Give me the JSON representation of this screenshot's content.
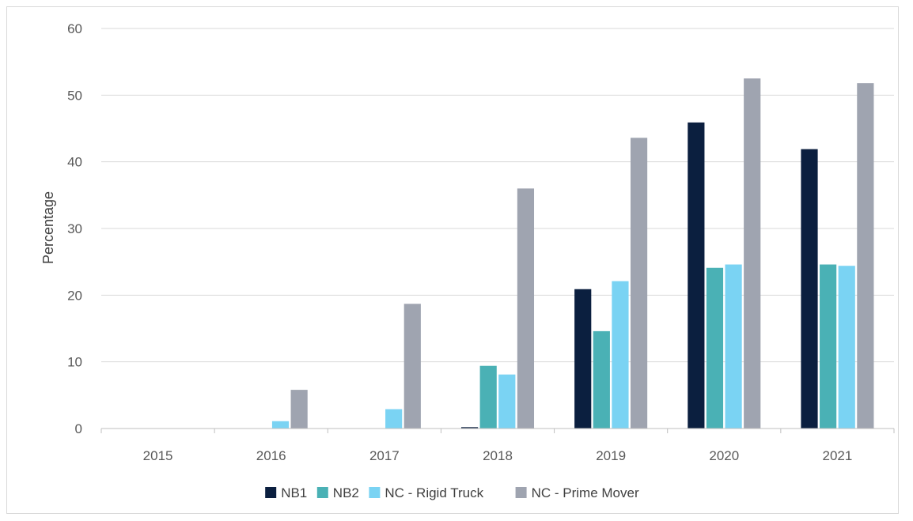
{
  "chart_data": {
    "type": "bar",
    "title": "",
    "xlabel": "",
    "ylabel": "Percentage",
    "ylim": [
      0,
      60
    ],
    "yticks": [
      0,
      10,
      20,
      30,
      40,
      50,
      60
    ],
    "grid": true,
    "legend_position": "bottom",
    "categories": [
      "2015",
      "2016",
      "2017",
      "2018",
      "2019",
      "2020",
      "2021"
    ],
    "series": [
      {
        "name": "NB1",
        "color": "#0b1f3f",
        "values": [
          0,
          0,
          0,
          0.2,
          20.9,
          45.9,
          41.9
        ]
      },
      {
        "name": "NB2",
        "color": "#4ab1b5",
        "values": [
          0,
          0,
          0,
          9.4,
          14.6,
          24.1,
          24.6
        ]
      },
      {
        "name": "NC - Rigid Truck",
        "color": "#7ad3f3",
        "values": [
          0,
          1.1,
          2.9,
          8.1,
          22.1,
          24.6,
          24.4
        ]
      },
      {
        "name": "NC - Prime Mover",
        "color": "#9fa4b0",
        "values": [
          0,
          5.8,
          18.7,
          36.0,
          43.6,
          52.5,
          51.8
        ]
      }
    ]
  }
}
